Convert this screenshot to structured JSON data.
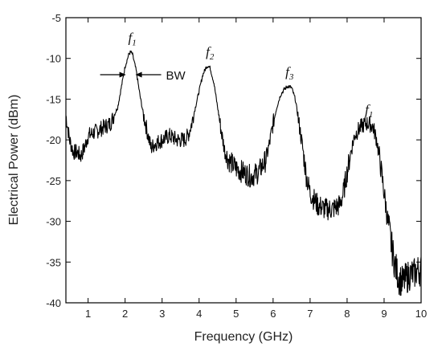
{
  "chart_data": {
    "type": "line",
    "xlabel": "Frequency (GHz)",
    "ylabel": "Electrical Power (dBm)",
    "xlim": [
      0.4,
      10
    ],
    "ylim": [
      -40,
      -5
    ],
    "xticks": [
      1,
      2,
      3,
      4,
      5,
      6,
      7,
      8,
      9,
      10
    ],
    "yticks": [
      -5,
      -10,
      -15,
      -20,
      -25,
      -30,
      -35,
      -40
    ],
    "grid": false,
    "series": [
      {
        "color": "#000000",
        "points": [
          [
            0.4,
            -17.0
          ],
          [
            0.5,
            -20.0
          ],
          [
            0.6,
            -21.5
          ],
          [
            0.7,
            -21.5
          ],
          [
            0.8,
            -22.0
          ],
          [
            0.9,
            -21.0
          ],
          [
            1.0,
            -19.5
          ],
          [
            1.2,
            -19.0
          ],
          [
            1.4,
            -18.5
          ],
          [
            1.6,
            -18.0
          ],
          [
            1.8,
            -16.0
          ],
          [
            1.9,
            -13.5
          ],
          [
            2.0,
            -11.0
          ],
          [
            2.1,
            -9.5
          ],
          [
            2.15,
            -9.2
          ],
          [
            2.2,
            -9.5
          ],
          [
            2.3,
            -11.5
          ],
          [
            2.4,
            -14.5
          ],
          [
            2.5,
            -17.0
          ],
          [
            2.6,
            -19.0
          ],
          [
            2.7,
            -21.0
          ],
          [
            2.8,
            -20.5
          ],
          [
            3.0,
            -20.0
          ],
          [
            3.2,
            -19.5
          ],
          [
            3.4,
            -20.0
          ],
          [
            3.6,
            -20.0
          ],
          [
            3.7,
            -19.5
          ],
          [
            3.8,
            -18.0
          ],
          [
            3.9,
            -16.0
          ],
          [
            4.0,
            -14.0
          ],
          [
            4.1,
            -12.0
          ],
          [
            4.2,
            -11.0
          ],
          [
            4.25,
            -10.9
          ],
          [
            4.3,
            -11.2
          ],
          [
            4.4,
            -13.0
          ],
          [
            4.5,
            -16.0
          ],
          [
            4.6,
            -19.0
          ],
          [
            4.7,
            -21.5
          ],
          [
            4.8,
            -22.5
          ],
          [
            5.0,
            -23.5
          ],
          [
            5.2,
            -24.0
          ],
          [
            5.4,
            -24.5
          ],
          [
            5.6,
            -24.0
          ],
          [
            5.8,
            -22.5
          ],
          [
            5.9,
            -20.5
          ],
          [
            6.0,
            -18.0
          ],
          [
            6.1,
            -16.0
          ],
          [
            6.2,
            -14.5
          ],
          [
            6.3,
            -13.8
          ],
          [
            6.4,
            -13.4
          ],
          [
            6.5,
            -13.6
          ],
          [
            6.6,
            -15.0
          ],
          [
            6.7,
            -18.0
          ],
          [
            6.8,
            -21.0
          ],
          [
            6.9,
            -24.5
          ],
          [
            7.0,
            -26.5
          ],
          [
            7.2,
            -28.0
          ],
          [
            7.4,
            -28.5
          ],
          [
            7.6,
            -28.5
          ],
          [
            7.8,
            -28.0
          ],
          [
            7.9,
            -26.5
          ],
          [
            8.0,
            -24.0
          ],
          [
            8.1,
            -21.5
          ],
          [
            8.2,
            -19.5
          ],
          [
            8.3,
            -18.8
          ],
          [
            8.4,
            -18.3
          ],
          [
            8.5,
            -18.0
          ],
          [
            8.6,
            -18.0
          ],
          [
            8.7,
            -18.4
          ],
          [
            8.8,
            -20.0
          ],
          [
            8.9,
            -23.0
          ],
          [
            9.0,
            -26.5
          ],
          [
            9.1,
            -30.0
          ],
          [
            9.2,
            -33.0
          ],
          [
            9.3,
            -35.5
          ],
          [
            9.4,
            -37.0
          ],
          [
            9.5,
            -37.5
          ],
          [
            9.6,
            -37.0
          ],
          [
            9.7,
            -36.5
          ],
          [
            9.8,
            -36.5
          ],
          [
            9.9,
            -36.0
          ],
          [
            10.0,
            -36.0
          ]
        ]
      }
    ],
    "annotations": {
      "peaks": [
        {
          "letter": "f",
          "sub": "1",
          "x": 2.15,
          "y": -9.2
        },
        {
          "letter": "f",
          "sub": "2",
          "x": 4.25,
          "y": -10.9
        },
        {
          "letter": "f",
          "sub": "3",
          "x": 6.4,
          "y": -13.4
        },
        {
          "letter": "f",
          "sub": "1",
          "x": 8.55,
          "y": -18.0
        }
      ],
      "bw": {
        "label": "BW",
        "y": -12.0,
        "left_x": 2.02,
        "right_x": 2.28
      }
    }
  }
}
